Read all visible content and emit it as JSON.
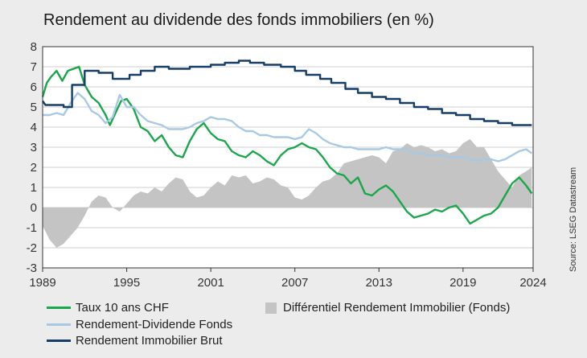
{
  "title": "Rendement au dividende des fonds immobiliers (en %)",
  "source": "Source: LSEG Datastream",
  "colors": {
    "green": "#1aa64a",
    "light_blue": "#a8c8e4",
    "dark_blue": "#163d66",
    "gray": "#c4c4c4"
  },
  "chart_data": {
    "type": "line",
    "ylim": [
      -3,
      8
    ],
    "xlim": [
      1989,
      2024
    ],
    "yticks": [
      "8",
      "7",
      "6",
      "5",
      "4",
      "3",
      "2",
      "1",
      "0",
      "-1",
      "-2",
      "-3"
    ],
    "xticks": [
      "1989",
      "1995",
      "2001",
      "2007",
      "2013",
      "2019",
      "2024"
    ],
    "legend_placement": "bottom",
    "series": [
      {
        "name": "Taux 10 ans CHF",
        "kind": "line",
        "color": "#1aa64a",
        "x": [
          1989.0,
          1989.3,
          1989.6,
          1990.0,
          1990.4,
          1990.8,
          1991.2,
          1991.6,
          1992.0,
          1992.5,
          1993.0,
          1993.5,
          1993.8,
          1994.2,
          1994.6,
          1995.0,
          1995.5,
          1996.0,
          1996.5,
          1997.0,
          1997.5,
          1998.0,
          1998.5,
          1999.0,
          1999.5,
          2000.0,
          2000.5,
          2001.0,
          2001.5,
          2002.0,
          2002.5,
          2003.0,
          2003.5,
          2004.0,
          2004.5,
          2005.0,
          2005.5,
          2006.0,
          2006.5,
          2007.0,
          2007.5,
          2008.0,
          2008.5,
          2009.0,
          2009.5,
          2010.0,
          2010.5,
          2011.0,
          2011.5,
          2012.0,
          2012.5,
          2013.0,
          2013.5,
          2014.0,
          2014.5,
          2015.0,
          2015.5,
          2016.0,
          2016.5,
          2017.0,
          2017.5,
          2018.0,
          2018.5,
          2019.0,
          2019.5,
          2020.0,
          2020.5,
          2021.0,
          2021.5,
          2022.0,
          2022.5,
          2023.0,
          2023.5,
          2023.9
        ],
        "y": [
          5.5,
          6.2,
          6.5,
          6.8,
          6.3,
          6.8,
          6.9,
          7.0,
          6.1,
          5.5,
          5.2,
          4.6,
          4.1,
          4.7,
          5.3,
          5.4,
          4.9,
          4.0,
          3.8,
          3.3,
          3.6,
          3.0,
          2.6,
          2.5,
          3.3,
          3.9,
          4.2,
          3.7,
          3.4,
          3.3,
          2.8,
          2.6,
          2.5,
          2.8,
          2.6,
          2.3,
          2.1,
          2.6,
          2.9,
          3.0,
          3.2,
          3.0,
          2.9,
          2.5,
          2.0,
          1.7,
          1.6,
          1.2,
          1.5,
          0.7,
          0.6,
          0.9,
          1.1,
          0.8,
          0.3,
          -0.2,
          -0.5,
          -0.4,
          -0.3,
          -0.1,
          -0.2,
          0.0,
          0.1,
          -0.3,
          -0.8,
          -0.6,
          -0.4,
          -0.3,
          0.0,
          0.6,
          1.2,
          1.5,
          1.1,
          0.7
        ]
      },
      {
        "name": "Rendement-Dividende Fonds",
        "kind": "line",
        "color": "#a8c8e4",
        "x": [
          1989.0,
          1989.5,
          1990.0,
          1990.5,
          1991.0,
          1991.5,
          1992.0,
          1992.5,
          1993.0,
          1993.5,
          1994.0,
          1994.5,
          1995.0,
          1995.5,
          1996.0,
          1996.5,
          1997.0,
          1997.5,
          1998.0,
          1998.5,
          1999.0,
          1999.5,
          2000.0,
          2000.5,
          2001.0,
          2001.5,
          2002.0,
          2002.5,
          2003.0,
          2003.5,
          2004.0,
          2004.5,
          2005.0,
          2005.5,
          2006.0,
          2006.5,
          2007.0,
          2007.5,
          2008.0,
          2008.5,
          2009.0,
          2009.5,
          2010.0,
          2010.5,
          2011.0,
          2011.5,
          2012.0,
          2012.5,
          2013.0,
          2013.5,
          2014.0,
          2014.5,
          2015.0,
          2015.5,
          2016.0,
          2016.5,
          2017.0,
          2017.5,
          2018.0,
          2018.5,
          2019.0,
          2019.5,
          2020.0,
          2020.5,
          2021.0,
          2021.5,
          2022.0,
          2022.5,
          2023.0,
          2023.5,
          2023.9
        ],
        "y": [
          4.6,
          4.6,
          4.7,
          4.6,
          5.2,
          5.7,
          5.4,
          4.8,
          4.6,
          4.2,
          4.5,
          5.6,
          5.0,
          5.0,
          4.6,
          4.3,
          4.2,
          4.1,
          3.9,
          3.9,
          3.9,
          4.0,
          4.2,
          4.3,
          4.5,
          4.4,
          4.4,
          4.3,
          4.0,
          3.8,
          3.8,
          3.6,
          3.6,
          3.5,
          3.5,
          3.5,
          3.4,
          3.5,
          3.9,
          3.7,
          3.4,
          3.2,
          3.1,
          3.0,
          3.0,
          2.9,
          2.9,
          2.9,
          2.9,
          3.0,
          2.9,
          2.9,
          2.9,
          2.7,
          2.7,
          2.6,
          2.6,
          2.6,
          2.5,
          2.5,
          2.5,
          2.4,
          2.3,
          2.4,
          2.4,
          2.3,
          2.4,
          2.6,
          2.8,
          2.9,
          2.7
        ]
      },
      {
        "name": "Rendement Immobilier Brut",
        "kind": "line",
        "color": "#163d66",
        "x": [
          1989.0,
          1989.2,
          1990.5,
          1990.5,
          1991.1,
          1991.1,
          1992.0,
          1992.0,
          1993.0,
          1993.0,
          1994.0,
          1994.0,
          1995.2,
          1995.2,
          1996.0,
          1996.0,
          1997.0,
          1997.0,
          1998.0,
          1998.0,
          1999.5,
          1999.5,
          2001.0,
          2001.0,
          2002.0,
          2002.0,
          2003.0,
          2003.0,
          2003.8,
          2003.8,
          2004.8,
          2004.8,
          2006.0,
          2006.0,
          2007.0,
          2007.0,
          2007.8,
          2007.8,
          2008.8,
          2008.8,
          2009.6,
          2009.6,
          2010.6,
          2010.6,
          2011.5,
          2011.5,
          2012.5,
          2012.5,
          2013.5,
          2013.5,
          2014.5,
          2014.5,
          2015.5,
          2015.5,
          2016.5,
          2016.5,
          2017.5,
          2017.5,
          2018.5,
          2018.5,
          2019.5,
          2019.5,
          2020.5,
          2020.5,
          2021.5,
          2021.5,
          2022.5,
          2022.5,
          2023.9
        ],
        "y": [
          5.3,
          5.1,
          5.1,
          5.0,
          5.0,
          6.1,
          6.1,
          6.8,
          6.8,
          6.7,
          6.7,
          6.4,
          6.4,
          6.6,
          6.6,
          6.8,
          6.8,
          7.0,
          7.0,
          6.9,
          6.9,
          7.0,
          7.0,
          7.1,
          7.1,
          7.2,
          7.2,
          7.3,
          7.3,
          7.2,
          7.2,
          7.1,
          7.1,
          7.0,
          7.0,
          6.8,
          6.8,
          6.6,
          6.6,
          6.4,
          6.4,
          6.2,
          6.2,
          5.9,
          5.9,
          5.7,
          5.7,
          5.5,
          5.5,
          5.4,
          5.4,
          5.2,
          5.2,
          5.0,
          5.0,
          4.9,
          4.9,
          4.7,
          4.7,
          4.6,
          4.6,
          4.4,
          4.4,
          4.3,
          4.3,
          4.2,
          4.2,
          4.1,
          4.1
        ]
      },
      {
        "name": "Différentiel Rendement Immobilier (Fonds)",
        "kind": "area",
        "color": "#c4c4c4",
        "x": [
          1989.0,
          1989.5,
          1990.0,
          1990.5,
          1991.0,
          1991.5,
          1992.0,
          1992.5,
          1993.0,
          1993.5,
          1994.0,
          1994.5,
          1995.0,
          1995.5,
          1996.0,
          1996.5,
          1997.0,
          1997.5,
          1998.0,
          1998.5,
          1999.0,
          1999.5,
          2000.0,
          2000.5,
          2001.0,
          2001.5,
          2002.0,
          2002.5,
          2003.0,
          2003.5,
          2004.0,
          2004.5,
          2005.0,
          2005.5,
          2006.0,
          2006.5,
          2007.0,
          2007.5,
          2008.0,
          2008.5,
          2009.0,
          2009.5,
          2010.0,
          2010.5,
          2011.0,
          2011.5,
          2012.0,
          2012.5,
          2013.0,
          2013.5,
          2014.0,
          2014.5,
          2015.0,
          2015.5,
          2016.0,
          2016.5,
          2017.0,
          2017.5,
          2018.0,
          2018.5,
          2019.0,
          2019.5,
          2020.0,
          2020.5,
          2021.0,
          2021.5,
          2022.0,
          2022.5,
          2023.0,
          2023.5,
          2023.9
        ],
        "y": [
          -0.9,
          -1.6,
          -2.0,
          -1.8,
          -1.4,
          -1.0,
          -0.4,
          0.3,
          0.6,
          0.5,
          0.0,
          -0.2,
          0.2,
          0.6,
          0.8,
          0.7,
          1.0,
          0.8,
          1.2,
          1.5,
          1.4,
          0.8,
          0.5,
          0.6,
          1.0,
          1.3,
          1.1,
          1.6,
          1.5,
          1.6,
          1.2,
          1.3,
          1.5,
          1.4,
          1.1,
          1.0,
          0.5,
          0.4,
          0.6,
          1.0,
          1.3,
          1.4,
          1.7,
          2.2,
          2.3,
          2.4,
          2.5,
          2.6,
          2.5,
          2.2,
          2.8,
          2.9,
          3.2,
          3.0,
          3.1,
          3.0,
          2.8,
          2.9,
          2.7,
          2.8,
          3.2,
          3.4,
          3.0,
          3.0,
          2.4,
          1.8,
          1.4,
          1.0,
          1.6,
          1.8,
          2.0
        ]
      }
    ]
  }
}
